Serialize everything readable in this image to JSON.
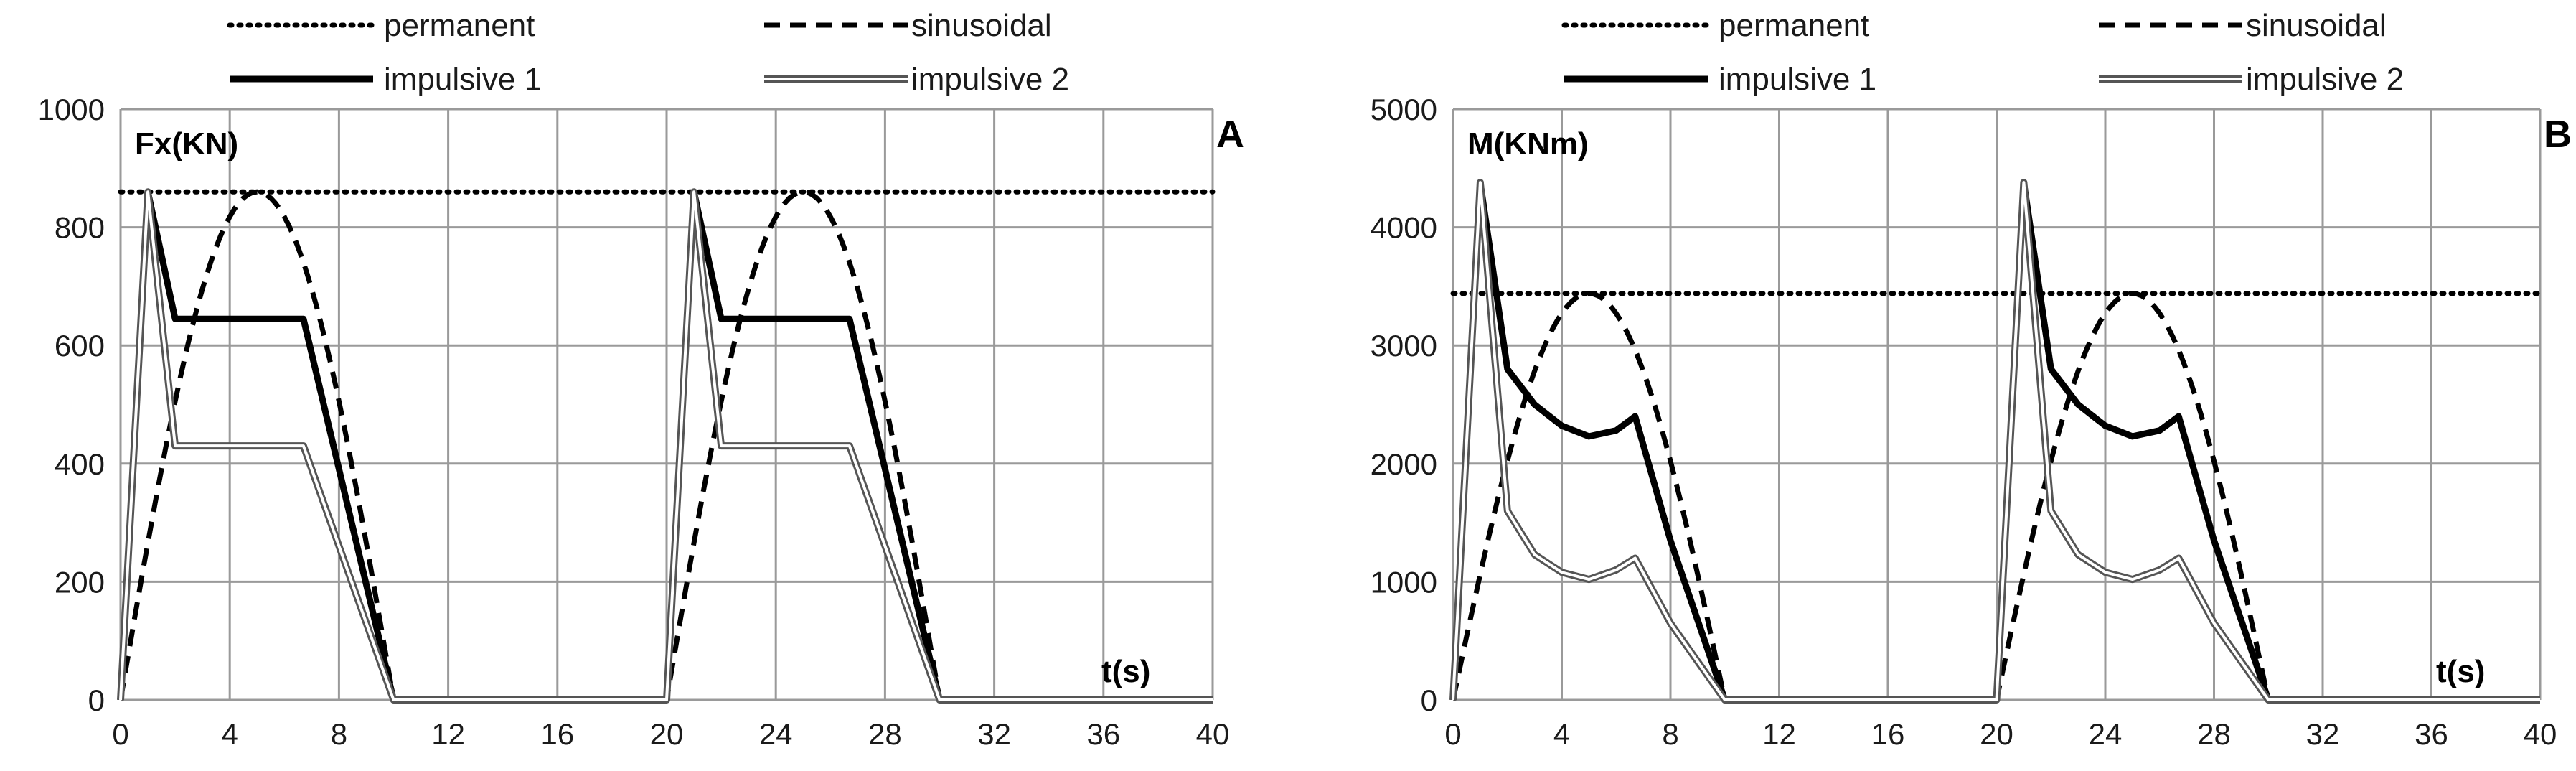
{
  "legend": {
    "permanent": "permanent",
    "sinusoidal": "sinusoidal",
    "impulsive1": "impulsive 1",
    "impulsive2": "impulsive 2"
  },
  "colors": {
    "line": "#000000",
    "grid": "#9a9a9a",
    "impulsive2_outline": "#555555"
  },
  "chart_data": [
    {
      "type": "line",
      "panel_label": "A",
      "ylabel": "Fx(KN)",
      "xlabel": "t(s)",
      "xlim": [
        0,
        40
      ],
      "ylim": [
        0,
        1000
      ],
      "xticks": [
        0,
        4,
        8,
        12,
        16,
        20,
        24,
        28,
        32,
        36,
        40
      ],
      "yticks": [
        0,
        200,
        400,
        600,
        800,
        1000
      ],
      "series": [
        {
          "name": "permanent",
          "style": "dotted",
          "points": [
            [
              0,
              860
            ],
            [
              40,
              860
            ]
          ]
        },
        {
          "name": "sinusoidal",
          "style": "dashed",
          "function": "half-sine",
          "amplitude": 860,
          "periods": [
            [
              0,
              10
            ],
            [
              20,
              30
            ]
          ]
        },
        {
          "name": "impulsive 1",
          "style": "solid-thick",
          "points": [
            [
              0,
              0
            ],
            [
              1,
              860
            ],
            [
              2,
              645
            ],
            [
              6.7,
              645
            ],
            [
              10,
              0
            ],
            [
              20,
              0
            ],
            [
              21,
              860
            ],
            [
              22,
              645
            ],
            [
              26.7,
              645
            ],
            [
              30,
              0
            ],
            [
              40,
              0
            ]
          ]
        },
        {
          "name": "impulsive 2",
          "style": "double",
          "points": [
            [
              0,
              0
            ],
            [
              1,
              860
            ],
            [
              2,
              430
            ],
            [
              6.7,
              430
            ],
            [
              10,
              0
            ],
            [
              20,
              0
            ],
            [
              21,
              860
            ],
            [
              22,
              430
            ],
            [
              26.7,
              430
            ],
            [
              30,
              0
            ],
            [
              40,
              0
            ]
          ]
        }
      ]
    },
    {
      "type": "line",
      "panel_label": "B",
      "ylabel": "M(KNm)",
      "xlabel": "t(s)",
      "xlim": [
        0,
        40
      ],
      "ylim": [
        0,
        5000
      ],
      "xticks": [
        0,
        4,
        8,
        12,
        16,
        20,
        24,
        28,
        32,
        36,
        40
      ],
      "yticks": [
        0,
        1000,
        2000,
        3000,
        4000,
        5000
      ],
      "series": [
        {
          "name": "permanent",
          "style": "dotted",
          "points": [
            [
              0,
              3440
            ],
            [
              40,
              3440
            ]
          ]
        },
        {
          "name": "sinusoidal",
          "style": "dashed",
          "function": "half-sine",
          "amplitude": 3440,
          "periods": [
            [
              0,
              10
            ],
            [
              20,
              30
            ]
          ]
        },
        {
          "name": "impulsive 1",
          "style": "solid-thick",
          "points": [
            [
              0,
              0
            ],
            [
              1,
              4380
            ],
            [
              2,
              2800
            ],
            [
              3,
              2500
            ],
            [
              4,
              2320
            ],
            [
              5,
              2230
            ],
            [
              6,
              2280
            ],
            [
              6.7,
              2400
            ],
            [
              8,
              1350
            ],
            [
              10,
              0
            ],
            [
              20,
              0
            ],
            [
              21,
              4380
            ],
            [
              22,
              2800
            ],
            [
              23,
              2500
            ],
            [
              24,
              2320
            ],
            [
              25,
              2230
            ],
            [
              26,
              2280
            ],
            [
              26.7,
              2400
            ],
            [
              28,
              1350
            ],
            [
              30,
              0
            ],
            [
              40,
              0
            ]
          ]
        },
        {
          "name": "impulsive 2",
          "style": "double",
          "points": [
            [
              0,
              0
            ],
            [
              1,
              4380
            ],
            [
              2,
              1600
            ],
            [
              3,
              1230
            ],
            [
              4,
              1080
            ],
            [
              5,
              1020
            ],
            [
              6,
              1100
            ],
            [
              6.7,
              1200
            ],
            [
              8,
              650
            ],
            [
              10,
              0
            ],
            [
              20,
              0
            ],
            [
              21,
              4380
            ],
            [
              22,
              1600
            ],
            [
              23,
              1230
            ],
            [
              24,
              1080
            ],
            [
              25,
              1020
            ],
            [
              26,
              1100
            ],
            [
              26.7,
              1200
            ],
            [
              28,
              650
            ],
            [
              30,
              0
            ],
            [
              40,
              0
            ]
          ]
        }
      ]
    }
  ]
}
